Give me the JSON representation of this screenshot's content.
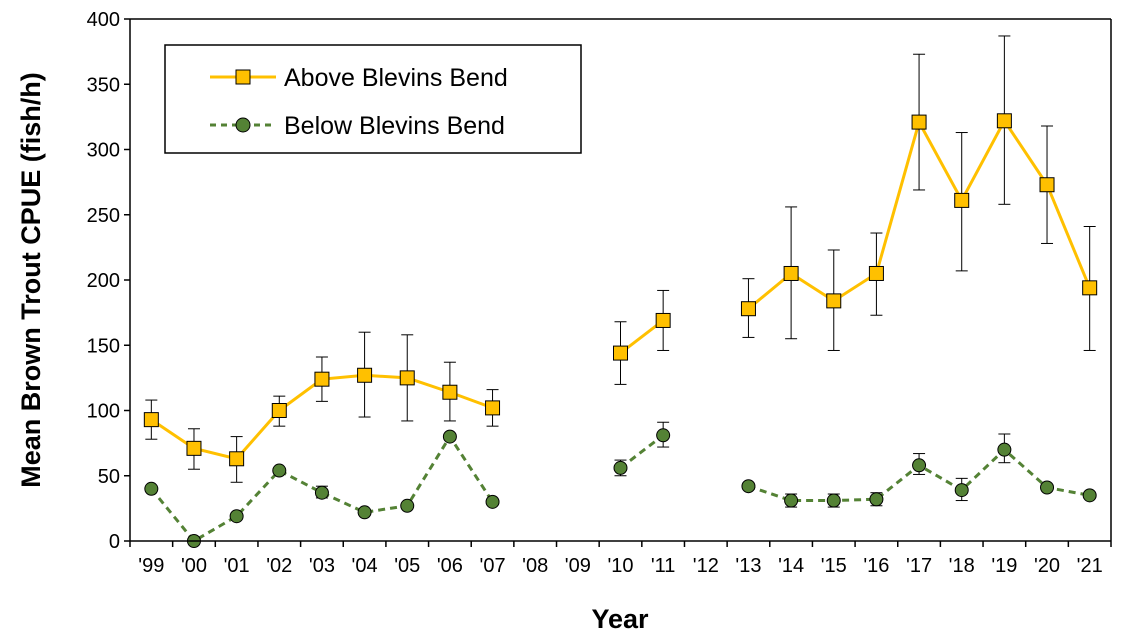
{
  "chart_data": {
    "type": "line",
    "xlabel": "Year",
    "ylabel": "Mean Brown Trout CPUE (fish/h)",
    "ylim": [
      0,
      400
    ],
    "yticks": [
      0,
      50,
      100,
      150,
      200,
      250,
      300,
      350,
      400
    ],
    "categories": [
      "'99",
      "'00",
      "'01",
      "'02",
      "'03",
      "'04",
      "'05",
      "'06",
      "'07",
      "'08",
      "'09",
      "'10",
      "'11",
      "'12",
      "'13",
      "'14",
      "'15",
      "'16",
      "'17",
      "'18",
      "'19",
      "'20",
      "'21"
    ],
    "legend_position": "top-left",
    "grid": false,
    "series": [
      {
        "name": "Above Blevins Bend",
        "color": "#FFC000",
        "marker_fill": "#FFC000",
        "marker": "square",
        "line_style": "solid",
        "values": [
          93,
          71,
          63,
          100,
          124,
          127,
          125,
          114,
          102,
          null,
          null,
          144,
          169,
          null,
          178,
          205,
          184,
          205,
          321,
          261,
          322,
          273,
          194
        ],
        "error_low": [
          78,
          55,
          45,
          88,
          107,
          95,
          92,
          92,
          88,
          null,
          null,
          120,
          146,
          null,
          156,
          155,
          146,
          173,
          269,
          207,
          258,
          228,
          146
        ],
        "error_high": [
          108,
          86,
          80,
          111,
          141,
          160,
          158,
          137,
          116,
          null,
          null,
          168,
          192,
          null,
          201,
          256,
          223,
          236,
          373,
          313,
          387,
          318,
          241
        ]
      },
      {
        "name": "Below Blevins Bend",
        "color": "#548235",
        "marker_fill": "#548235",
        "marker": "circle",
        "line_style": "dashed",
        "values": [
          40,
          0,
          19,
          54,
          37,
          22,
          27,
          80,
          30,
          null,
          null,
          56,
          81,
          null,
          42,
          31,
          31,
          32,
          58,
          39,
          70,
          41,
          35
        ],
        "error_low": [
          null,
          null,
          null,
          null,
          33,
          null,
          null,
          null,
          null,
          null,
          null,
          50,
          72,
          null,
          null,
          26,
          26,
          27,
          51,
          31,
          60,
          null,
          null
        ],
        "error_high": [
          null,
          null,
          null,
          null,
          42,
          null,
          null,
          null,
          null,
          null,
          null,
          62,
          91,
          null,
          null,
          36,
          36,
          37,
          67,
          48,
          82,
          null,
          null
        ]
      }
    ]
  }
}
